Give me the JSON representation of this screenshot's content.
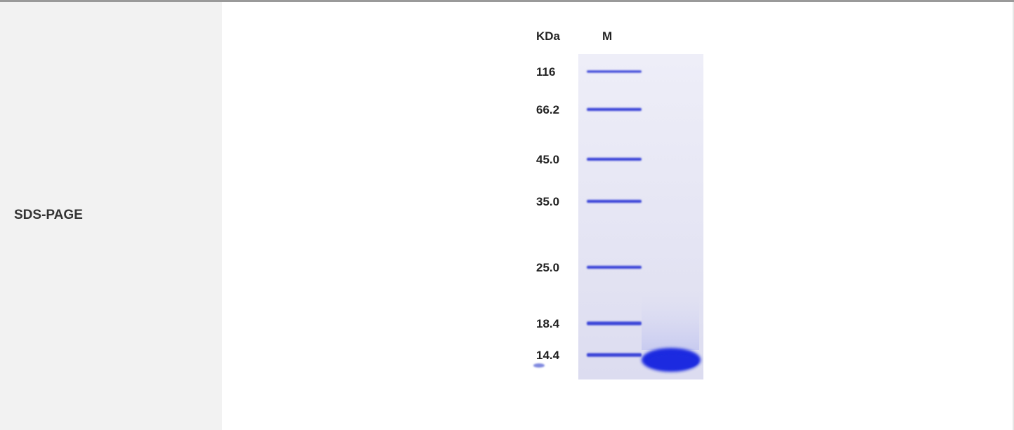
{
  "row": {
    "label": "SDS-PAGE"
  },
  "gel": {
    "unit_label": "KDa",
    "marker_lane_label": "M",
    "marker_bands": [
      {
        "label": "116",
        "kda": 116
      },
      {
        "label": "66.2",
        "kda": 66.2
      },
      {
        "label": "45.0",
        "kda": 45.0
      },
      {
        "label": "35.0",
        "kda": 35.0
      },
      {
        "label": "25.0",
        "kda": 25.0
      },
      {
        "label": "18.4",
        "kda": 18.4
      },
      {
        "label": "14.4",
        "kda": 14.4
      }
    ],
    "colors": {
      "gel_background": "#e6e6f3",
      "band": "#3a45d8",
      "sample_band": "#1c2be0"
    }
  }
}
